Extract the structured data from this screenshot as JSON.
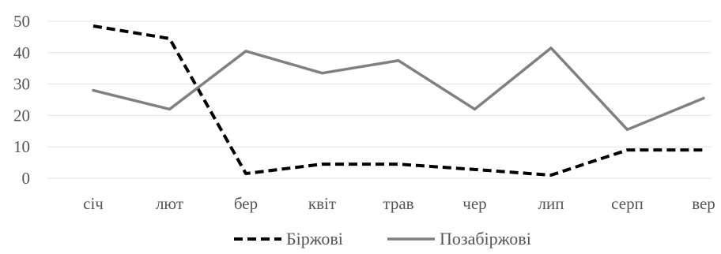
{
  "chart_data": {
    "type": "line",
    "categories": [
      "січ",
      "лют",
      "бер",
      "квіт",
      "трав",
      "чер",
      "лип",
      "серп",
      "вер"
    ],
    "series": [
      {
        "name": "Біржові",
        "values": [
          48.5,
          44.5,
          1.5,
          4.5,
          4.5,
          2.8,
          1.0,
          9.0,
          9.0
        ],
        "color": "#000000",
        "style": "dashed"
      },
      {
        "name": "Позабіржові",
        "values": [
          28.0,
          22.0,
          40.5,
          33.5,
          37.5,
          22.0,
          41.5,
          15.5,
          25.5
        ],
        "color": "#808080",
        "style": "solid"
      }
    ],
    "yticks": [
      "50",
      "40",
      "30",
      "20",
      "10",
      "0"
    ],
    "ylim": [
      0,
      50
    ],
    "grid": true,
    "legend_position": "bottom"
  }
}
